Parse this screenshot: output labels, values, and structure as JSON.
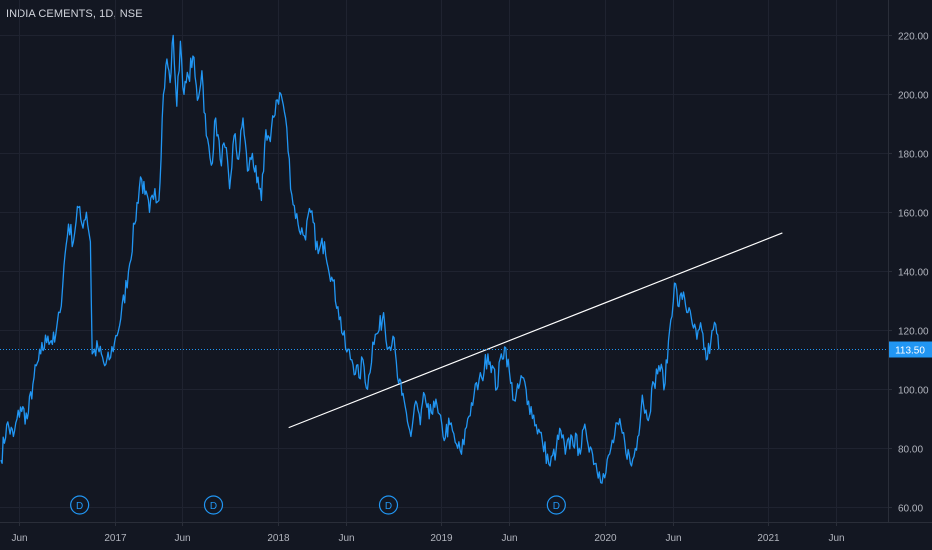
{
  "title": "INDIA CEMENTS, 1D, NSE",
  "colors": {
    "background": "#131722",
    "series": "#2196f3",
    "trendline": "#ffffff",
    "price_label_bg": "#2196f3",
    "dividend_marker": "#2196f3"
  },
  "chart_data": {
    "type": "line",
    "grid": true,
    "price_scale_position": "right",
    "ylim": [
      55,
      232
    ],
    "xlim": [
      "2016-04-20",
      "2021-09-25"
    ],
    "y_ticks": [
      "60.00",
      "80.00",
      "100.00",
      "120.00",
      "140.00",
      "160.00",
      "180.00",
      "200.00",
      "220.00"
    ],
    "x_ticks": [
      {
        "label": "Jun",
        "date": "2016-06-01"
      },
      {
        "label": "2017",
        "date": "2017-01-01"
      },
      {
        "label": "Jun",
        "date": "2017-06-01"
      },
      {
        "label": "2018",
        "date": "2018-01-01"
      },
      {
        "label": "Jun",
        "date": "2018-06-01"
      },
      {
        "label": "2019",
        "date": "2019-01-01"
      },
      {
        "label": "Jun",
        "date": "2019-06-01"
      },
      {
        "label": "2020",
        "date": "2020-01-01"
      },
      {
        "label": "Jun",
        "date": "2020-06-01"
      },
      {
        "label": "2021",
        "date": "2021-01-01"
      },
      {
        "label": "Jun",
        "date": "2021-06-01"
      }
    ],
    "series": [
      {
        "values": [
          [
            "2016-04-22",
            76
          ],
          [
            "2016-05-05",
            88
          ],
          [
            "2016-05-20",
            84
          ],
          [
            "2016-06-05",
            94
          ],
          [
            "2016-06-20",
            90
          ],
          [
            "2016-07-05",
            104
          ],
          [
            "2016-07-20",
            112
          ],
          [
            "2016-08-05",
            118
          ],
          [
            "2016-08-20",
            116
          ],
          [
            "2016-09-01",
            126
          ],
          [
            "2016-09-10",
            142
          ],
          [
            "2016-09-20",
            156
          ],
          [
            "2016-10-01",
            150
          ],
          [
            "2016-10-10",
            162
          ],
          [
            "2016-10-20",
            156
          ],
          [
            "2016-10-30",
            160
          ],
          [
            "2016-11-08",
            150
          ],
          [
            "2016-11-12",
            112
          ],
          [
            "2016-11-25",
            114
          ],
          [
            "2016-12-10",
            108
          ],
          [
            "2016-12-20",
            110
          ],
          [
            "2017-01-01",
            116
          ],
          [
            "2017-01-15",
            124
          ],
          [
            "2017-02-01",
            140
          ],
          [
            "2017-02-15",
            156
          ],
          [
            "2017-02-28",
            172
          ],
          [
            "2017-03-10",
            166
          ],
          [
            "2017-03-20",
            160
          ],
          [
            "2017-04-01",
            168
          ],
          [
            "2017-04-10",
            164
          ],
          [
            "2017-04-20",
            200
          ],
          [
            "2017-04-28",
            212
          ],
          [
            "2017-05-05",
            204
          ],
          [
            "2017-05-12",
            220
          ],
          [
            "2017-05-20",
            196
          ],
          [
            "2017-05-28",
            218
          ],
          [
            "2017-06-05",
            200
          ],
          [
            "2017-06-15",
            206
          ],
          [
            "2017-06-25",
            213
          ],
          [
            "2017-07-05",
            198
          ],
          [
            "2017-07-15",
            208
          ],
          [
            "2017-07-25",
            186
          ],
          [
            "2017-08-05",
            176
          ],
          [
            "2017-08-15",
            192
          ],
          [
            "2017-08-25",
            178
          ],
          [
            "2017-09-05",
            182
          ],
          [
            "2017-09-15",
            168
          ],
          [
            "2017-09-25",
            186
          ],
          [
            "2017-10-05",
            178
          ],
          [
            "2017-10-15",
            192
          ],
          [
            "2017-10-25",
            174
          ],
          [
            "2017-11-05",
            180
          ],
          [
            "2017-11-15",
            170
          ],
          [
            "2017-11-25",
            164
          ],
          [
            "2017-12-05",
            188
          ],
          [
            "2017-12-15",
            184
          ],
          [
            "2017-12-28",
            198
          ],
          [
            "2018-01-08",
            200
          ],
          [
            "2018-01-18",
            192
          ],
          [
            "2018-02-01",
            166
          ],
          [
            "2018-02-15",
            156
          ],
          [
            "2018-03-01",
            152
          ],
          [
            "2018-03-15",
            160
          ],
          [
            "2018-04-01",
            146
          ],
          [
            "2018-04-15",
            150
          ],
          [
            "2018-05-01",
            138
          ],
          [
            "2018-05-15",
            128
          ],
          [
            "2018-06-01",
            114
          ],
          [
            "2018-06-15",
            110
          ],
          [
            "2018-07-01",
            104
          ],
          [
            "2018-07-10",
            110
          ],
          [
            "2018-07-20",
            100
          ],
          [
            "2018-08-01",
            116
          ],
          [
            "2018-08-15",
            120
          ],
          [
            "2018-08-25",
            126
          ],
          [
            "2018-09-05",
            114
          ],
          [
            "2018-09-15",
            118
          ],
          [
            "2018-09-25",
            104
          ],
          [
            "2018-10-05",
            98
          ],
          [
            "2018-10-15",
            92
          ],
          [
            "2018-10-25",
            84
          ],
          [
            "2018-11-05",
            96
          ],
          [
            "2018-11-15",
            88
          ],
          [
            "2018-11-25",
            98
          ],
          [
            "2018-12-05",
            90
          ],
          [
            "2018-12-15",
            96
          ],
          [
            "2018-12-25",
            92
          ],
          [
            "2019-01-05",
            84
          ],
          [
            "2019-01-20",
            88
          ],
          [
            "2019-02-01",
            82
          ],
          [
            "2019-02-15",
            78
          ],
          [
            "2019-03-01",
            90
          ],
          [
            "2019-03-15",
            98
          ],
          [
            "2019-04-01",
            104
          ],
          [
            "2019-04-15",
            112
          ],
          [
            "2019-04-25",
            108
          ],
          [
            "2019-05-05",
            100
          ],
          [
            "2019-05-15",
            112
          ],
          [
            "2019-05-25",
            114
          ],
          [
            "2019-06-05",
            102
          ],
          [
            "2019-06-15",
            96
          ],
          [
            "2019-07-01",
            104
          ],
          [
            "2019-07-15",
            96
          ],
          [
            "2019-08-01",
            88
          ],
          [
            "2019-08-15",
            82
          ],
          [
            "2019-09-01",
            74
          ],
          [
            "2019-09-15",
            80
          ],
          [
            "2019-09-25",
            86
          ],
          [
            "2019-10-05",
            78
          ],
          [
            "2019-10-20",
            84
          ],
          [
            "2019-11-05",
            80
          ],
          [
            "2019-11-20",
            86
          ],
          [
            "2019-12-05",
            78
          ],
          [
            "2019-12-20",
            72
          ],
          [
            "2020-01-01",
            70
          ],
          [
            "2020-01-15",
            80
          ],
          [
            "2020-02-01",
            88
          ],
          [
            "2020-02-15",
            82
          ],
          [
            "2020-03-01",
            74
          ],
          [
            "2020-03-15",
            84
          ],
          [
            "2020-03-25",
            98
          ],
          [
            "2020-04-05",
            90
          ],
          [
            "2020-04-20",
            102
          ],
          [
            "2020-05-01",
            108
          ],
          [
            "2020-05-15",
            102
          ],
          [
            "2020-05-25",
            120
          ],
          [
            "2020-06-05",
            136
          ],
          [
            "2020-06-15",
            128
          ],
          [
            "2020-06-25",
            133
          ],
          [
            "2020-07-05",
            126
          ],
          [
            "2020-07-15",
            122
          ],
          [
            "2020-07-25",
            117
          ],
          [
            "2020-08-05",
            120
          ],
          [
            "2020-08-15",
            110
          ],
          [
            "2020-08-25",
            116
          ],
          [
            "2020-09-05",
            122
          ],
          [
            "2020-09-12",
            113.5
          ]
        ]
      }
    ],
    "last_price": 113.5,
    "last_price_label": "113.50",
    "trendline": [
      [
        "2018-01-25",
        87
      ],
      [
        "2021-02-01",
        153
      ]
    ],
    "dividend_markers": [
      {
        "label": "D",
        "date": "2016-10-15"
      },
      {
        "label": "D",
        "date": "2017-08-10"
      },
      {
        "label": "D",
        "date": "2018-09-05"
      },
      {
        "label": "D",
        "date": "2019-09-15"
      }
    ]
  }
}
